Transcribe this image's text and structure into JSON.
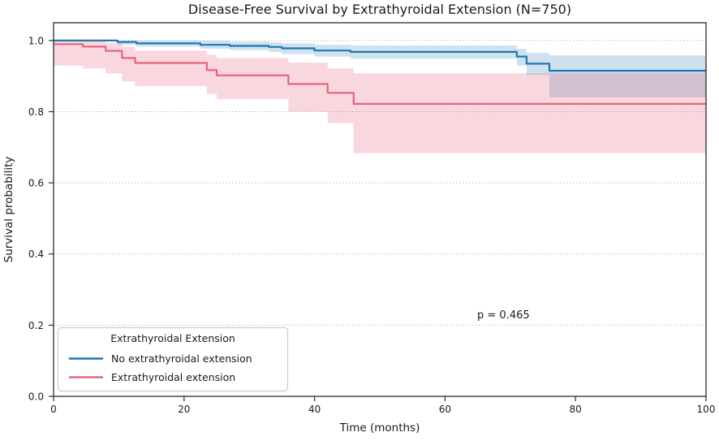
{
  "chart_data": {
    "type": "line",
    "subtype": "kaplan-meier-step-with-ci-bands",
    "title": "Disease-Free Survival by Extrathyroidal Extension (N=750)",
    "xlabel": "Time (months)",
    "ylabel": "Survival probability",
    "xlim": [
      0,
      100
    ],
    "ylim": [
      0,
      1.05
    ],
    "xticks": [
      "0",
      "20",
      "40",
      "60",
      "80",
      "100"
    ],
    "yticks": [
      "0.0",
      "0.2",
      "0.4",
      "0.6",
      "0.8",
      "1.0"
    ],
    "grid": "horizontal-dotted",
    "grid_color": "#bbbbbb",
    "spine_color": "#2b2b2b",
    "n_total": 750,
    "p_value": 0.465,
    "annotation": {
      "text": "p = 0.465"
    },
    "legend": {
      "title": "Extrathyroidal Extension",
      "position": "lower-left",
      "border_color": "#cccccc"
    },
    "series": [
      {
        "name": "No extrathyroidal extension",
        "color": "#1f77b4",
        "band_opacity": 0.22,
        "points": [
          [
            0,
            1.0
          ],
          [
            9.8,
            0.996
          ],
          [
            12.7,
            0.992
          ],
          [
            22.5,
            0.988
          ],
          [
            27,
            0.985
          ],
          [
            33,
            0.982
          ],
          [
            35,
            0.978
          ],
          [
            40,
            0.972
          ],
          [
            45.5,
            0.968
          ],
          [
            71,
            0.955
          ],
          [
            72.5,
            0.935
          ],
          [
            76,
            0.915
          ],
          [
            100,
            0.915
          ]
        ],
        "ci_upper": [
          [
            0,
            1.0
          ],
          [
            9.8,
            1.0
          ],
          [
            12.7,
            1.0
          ],
          [
            22.5,
            0.999
          ],
          [
            27,
            0.997
          ],
          [
            33,
            0.995
          ],
          [
            35,
            0.992
          ],
          [
            40,
            0.988
          ],
          [
            45.5,
            0.986
          ],
          [
            71,
            0.977
          ],
          [
            72.5,
            0.965
          ],
          [
            76,
            0.958
          ],
          [
            100,
            0.958
          ]
        ],
        "ci_lower": [
          [
            0,
            1.0
          ],
          [
            9.8,
            0.988
          ],
          [
            12.7,
            0.983
          ],
          [
            22.5,
            0.977
          ],
          [
            27,
            0.973
          ],
          [
            33,
            0.968
          ],
          [
            35,
            0.962
          ],
          [
            40,
            0.955
          ],
          [
            45.5,
            0.949
          ],
          [
            71,
            0.93
          ],
          [
            72.5,
            0.903
          ],
          [
            76,
            0.84
          ],
          [
            100,
            0.84
          ]
        ]
      },
      {
        "name": "Extrathyroidal extension",
        "color": "#e4647a",
        "band_opacity": 0.25,
        "points": [
          [
            0,
            0.99
          ],
          [
            4.5,
            0.983
          ],
          [
            8,
            0.971
          ],
          [
            10.5,
            0.951
          ],
          [
            12.5,
            0.937
          ],
          [
            23.5,
            0.917
          ],
          [
            25,
            0.902
          ],
          [
            36,
            0.878
          ],
          [
            42,
            0.853
          ],
          [
            46,
            0.822
          ],
          [
            100,
            0.822
          ]
        ],
        "ci_upper": [
          [
            0,
            1.0
          ],
          [
            4.5,
            0.998
          ],
          [
            8,
            0.993
          ],
          [
            10.5,
            0.983
          ],
          [
            12.5,
            0.972
          ],
          [
            23.5,
            0.96
          ],
          [
            25,
            0.951
          ],
          [
            36,
            0.938
          ],
          [
            42,
            0.922
          ],
          [
            46,
            0.908
          ],
          [
            100,
            0.908
          ]
        ],
        "ci_lower": [
          [
            0,
            0.93
          ],
          [
            4.5,
            0.922
          ],
          [
            8,
            0.908
          ],
          [
            10.5,
            0.885
          ],
          [
            12.5,
            0.872
          ],
          [
            23.5,
            0.85
          ],
          [
            25,
            0.836
          ],
          [
            36,
            0.8
          ],
          [
            42,
            0.768
          ],
          [
            46,
            0.683
          ],
          [
            100,
            0.683
          ]
        ]
      }
    ]
  }
}
